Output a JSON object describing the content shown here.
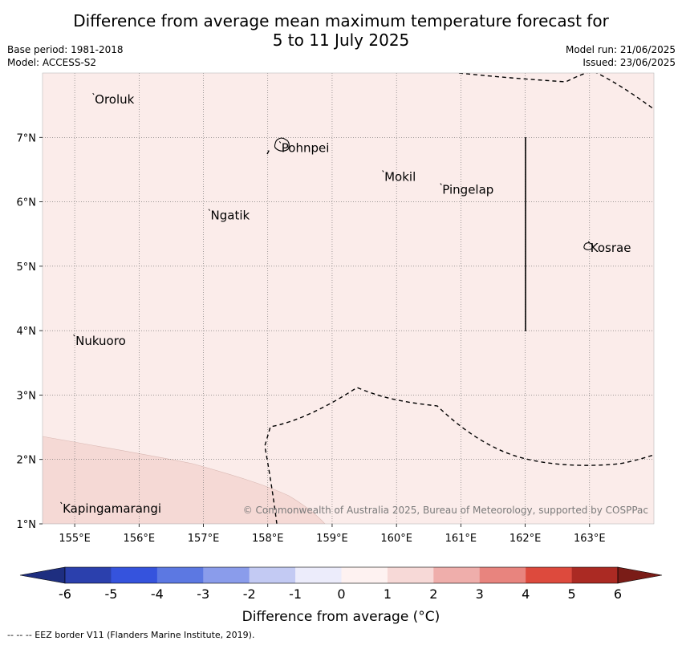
{
  "title": {
    "line1": "Difference from average mean maximum temperature forecast for",
    "line2": "5 to 11 July 2025"
  },
  "meta": {
    "base_period": "Base period: 1981-2018",
    "model": "Model: ACCESS-S2",
    "model_run": "Model run: 21/06/2025",
    "issued": "Issued: 23/06/2025"
  },
  "map": {
    "lon_range": [
      154.5,
      164
    ],
    "lat_range": [
      1,
      8
    ],
    "lon_ticks": [
      {
        "value": 155,
        "label": "155°E"
      },
      {
        "value": 156,
        "label": "156°E"
      },
      {
        "value": 157,
        "label": "157°E"
      },
      {
        "value": 158,
        "label": "158°E"
      },
      {
        "value": 159,
        "label": "159°E"
      },
      {
        "value": 160,
        "label": "160°E"
      },
      {
        "value": 161,
        "label": "161°E"
      },
      {
        "value": 162,
        "label": "162°E"
      },
      {
        "value": 163,
        "label": "163°E"
      }
    ],
    "lat_ticks": [
      {
        "value": 1,
        "label": "1°N"
      },
      {
        "value": 2,
        "label": "2°N"
      },
      {
        "value": 3,
        "label": "3°N"
      },
      {
        "value": 4,
        "label": "4°N"
      },
      {
        "value": 5,
        "label": "5°N"
      },
      {
        "value": 6,
        "label": "6°N"
      },
      {
        "value": 7,
        "label": "7°N"
      }
    ],
    "places": [
      {
        "name": "Oroluk",
        "lon": 155.3,
        "lat": 7.6
      },
      {
        "name": "Pohnpei",
        "lon": 158.2,
        "lat": 6.85
      },
      {
        "name": "Mokil",
        "lon": 159.8,
        "lat": 6.4
      },
      {
        "name": "Pingelap",
        "lon": 160.7,
        "lat": 6.2
      },
      {
        "name": "Ngatik",
        "lon": 157.1,
        "lat": 5.8
      },
      {
        "name": "Kosrae",
        "lon": 163.0,
        "lat": 5.3
      },
      {
        "name": "Nukuoro",
        "lon": 155.0,
        "lat": 3.85
      },
      {
        "name": "Kapingamarangi",
        "lon": 154.8,
        "lat": 1.25
      }
    ],
    "fill_main": "#fbecea",
    "fill_warm": "#f5d9d5",
    "copyright": "© Commonwealth of Australia 2025, Bureau of Meteorology, supported by COSPPac"
  },
  "colorbar": {
    "ticks": [
      "-6",
      "-5",
      "-4",
      "-3",
      "-2",
      "-1",
      "0",
      "1",
      "2",
      "3",
      "4",
      "5",
      "6"
    ],
    "colors": [
      "#2b40ad",
      "#3553dd",
      "#5c78e2",
      "#8a9ceb",
      "#c3caf3",
      "#ececfb",
      "#fef2f1",
      "#f7d9d7",
      "#efaeab",
      "#e8847e",
      "#dd4a3d",
      "#ab2a23"
    ],
    "under_color": "#1e2e80",
    "over_color": "#7a1c17",
    "label": "Difference from average (°C)"
  },
  "footer": "--  --  -- EEZ border V11 (Flanders Marine Institute, 2019)."
}
